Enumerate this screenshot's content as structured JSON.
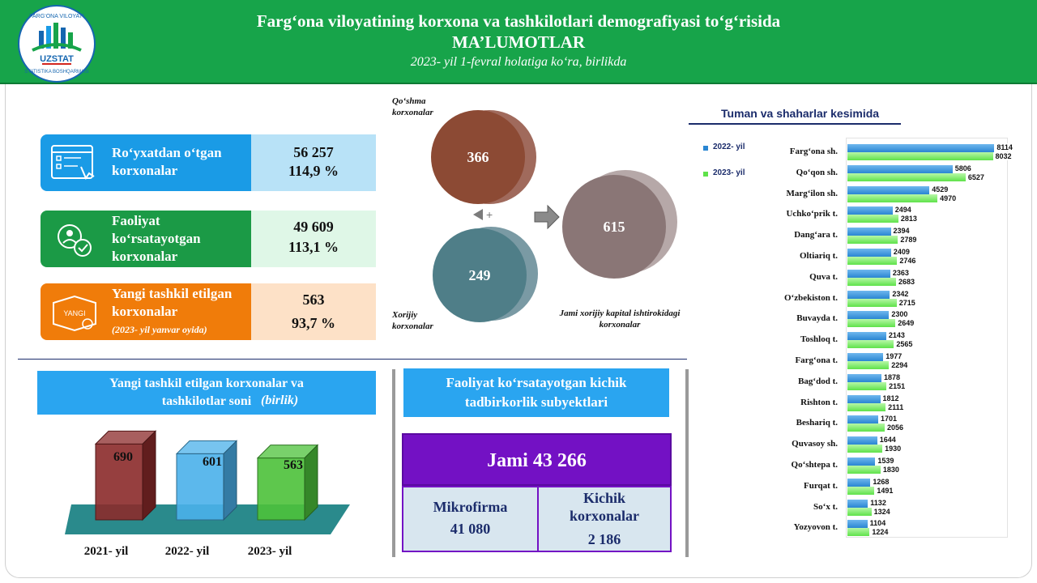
{
  "header": {
    "title_line1": "Farg‘ona viloyatining korxona va tashkilotlari demografiyasi to‘g‘risida",
    "title_line2": "MA’LUMOTLAR",
    "subtitle": "2023- yil 1-fevral holatiga ko‘ra, birlikda",
    "logo_top_text": "FARG‘ONA VILOYATI",
    "logo_brand": "UZSTAT",
    "logo_bottom_text": "STATISTIKA BOSHQARMASI"
  },
  "kpi": [
    {
      "label": "Ro‘yxatdan o‘tgan korxonalar",
      "value": "56 257",
      "percent": "114,9 %",
      "icon": "registration-form-icon",
      "color": "#1a9be6",
      "bg": "#b8e2f7"
    },
    {
      "label": "Faoliyat ko‘rsatayotgan korxonalar",
      "value": "49 609",
      "percent": "113,1 %",
      "icon": "active-enterprise-icon",
      "color": "#1b9a46",
      "bg": "#dff7e7"
    },
    {
      "label": "Yangi tashkil etilgan korxonalar",
      "note": "(2023- yil yanvar oyida)",
      "value": "563",
      "percent": "93,7 %",
      "icon": "new-box-icon",
      "icon_text": "YANGI",
      "color": "#f07c0a",
      "bg": "#fde1c7"
    }
  ],
  "pie": {
    "joint": {
      "label": "Qo‘shma korxonalar",
      "value": "366"
    },
    "foreign": {
      "label": "Xorijiy korxonalar",
      "value": "249"
    },
    "total": {
      "label": "Jami xorijiy kapital ishtirokidagi korxonalar",
      "value": "615"
    }
  },
  "new_orgs": {
    "title_main": "Yangi tashkil etilgan korxonalar va tashkilotlar soni",
    "title_unit": "(birlik)",
    "chart_data": {
      "type": "bar",
      "categories": [
        "2021- yil",
        "2022- yil",
        "2023- yil"
      ],
      "values": [
        690,
        601,
        563
      ],
      "colors": [
        "#8b2a2a",
        "#4ab0ea",
        "#4cc13a"
      ]
    }
  },
  "small_business": {
    "title": "Faoliyat ko‘rsatayotgan kichik tadbirkorlik subyektlari",
    "total_label": "Jami 43 266",
    "micro_label": "Mikrofirma",
    "micro_value": "41 080",
    "small_label": "Kichik korxonalar",
    "small_value": "2 186"
  },
  "districts": {
    "title": "Tuman va shaharlar kesimida",
    "chart_data": {
      "type": "bar",
      "orientation": "horizontal",
      "categories": [
        "Farg‘ona sh.",
        "Qo‘qon sh.",
        "Marg‘ilon sh.",
        "Uchko‘prik t.",
        "Dang‘ara t.",
        "Oltiariq t.",
        "Quva t.",
        "O‘zbekiston t.",
        "Buvayda t.",
        "Toshloq t.",
        "Farg‘ona t.",
        "Bag‘dod t.",
        "Rishton t.",
        "Beshariq t.",
        "Quvasoy sh.",
        "Qo‘shtepa t.",
        "Furqat t.",
        "So‘x t.",
        "Yozyovon t."
      ],
      "series": [
        {
          "name": "2022- yil",
          "color": "#2a86d2",
          "values": [
            8114,
            5806,
            4529,
            2494,
            2394,
            2409,
            2363,
            2342,
            2300,
            2143,
            1977,
            1878,
            1812,
            1701,
            1644,
            1539,
            1268,
            1132,
            1104
          ]
        },
        {
          "name": "2023- yil",
          "color": "#5fe24a",
          "values": [
            8032,
            6527,
            4970,
            2813,
            2789,
            2746,
            2683,
            2715,
            2649,
            2565,
            2294,
            2151,
            2111,
            2056,
            1930,
            1830,
            1491,
            1324,
            1224
          ]
        }
      ],
      "legend": "top-left"
    }
  }
}
